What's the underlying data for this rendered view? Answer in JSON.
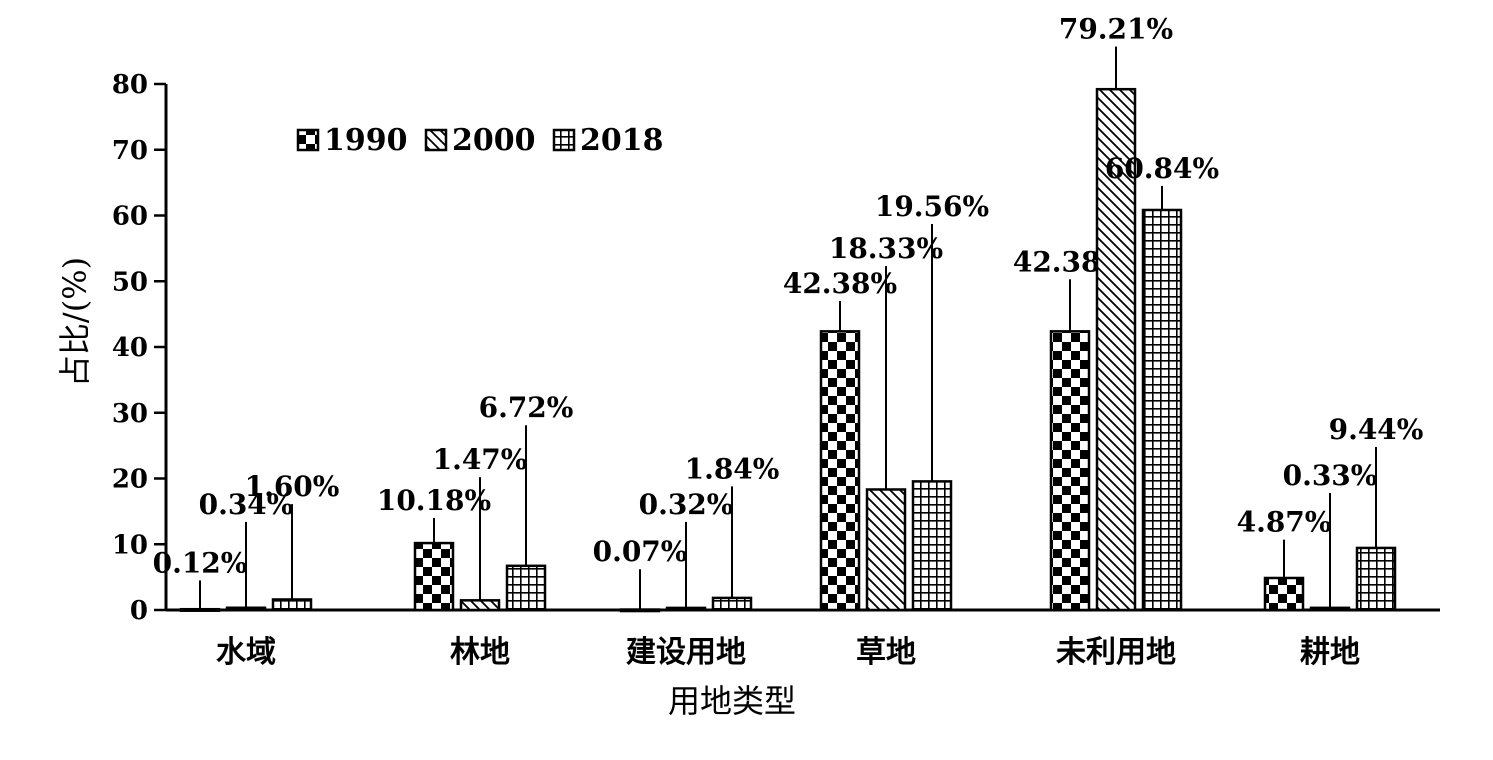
{
  "chart_data": {
    "type": "bar",
    "xlabel": "用地类型",
    "ylabel": "占比/(%)",
    "ylim": [
      0,
      80
    ],
    "yticks": [
      "0",
      "10",
      "20",
      "30",
      "40",
      "50",
      "60",
      "70",
      "80"
    ],
    "categories": [
      "水域",
      "林地",
      "建设用地",
      "草地",
      "未利用地",
      "耕地"
    ],
    "legend_position": "top-left",
    "series": [
      {
        "name": "1990",
        "pattern": "checker",
        "values": [
          0.12,
          10.18,
          0.07,
          42.38,
          42.38,
          4.87
        ],
        "labels": [
          "0.12%",
          "10.18%",
          "0.07%",
          "42.38%",
          "42.38%",
          "4.87%"
        ]
      },
      {
        "name": "2000",
        "pattern": "diagonal",
        "values": [
          0.34,
          1.47,
          0.32,
          18.33,
          79.21,
          0.33
        ],
        "labels": [
          "0.34%",
          "1.47%",
          "0.32%",
          "18.33%",
          "79.21%",
          "0.33%"
        ]
      },
      {
        "name": "2018",
        "pattern": "grid",
        "values": [
          1.6,
          6.72,
          1.84,
          19.56,
          60.84,
          9.44
        ],
        "labels": [
          "1.60%",
          "6.72%",
          "1.84%",
          "19.56%",
          "60.84%",
          "9.44%"
        ]
      }
    ],
    "colors": {
      "foreground": "#000000",
      "background": "#ffffff"
    }
  }
}
